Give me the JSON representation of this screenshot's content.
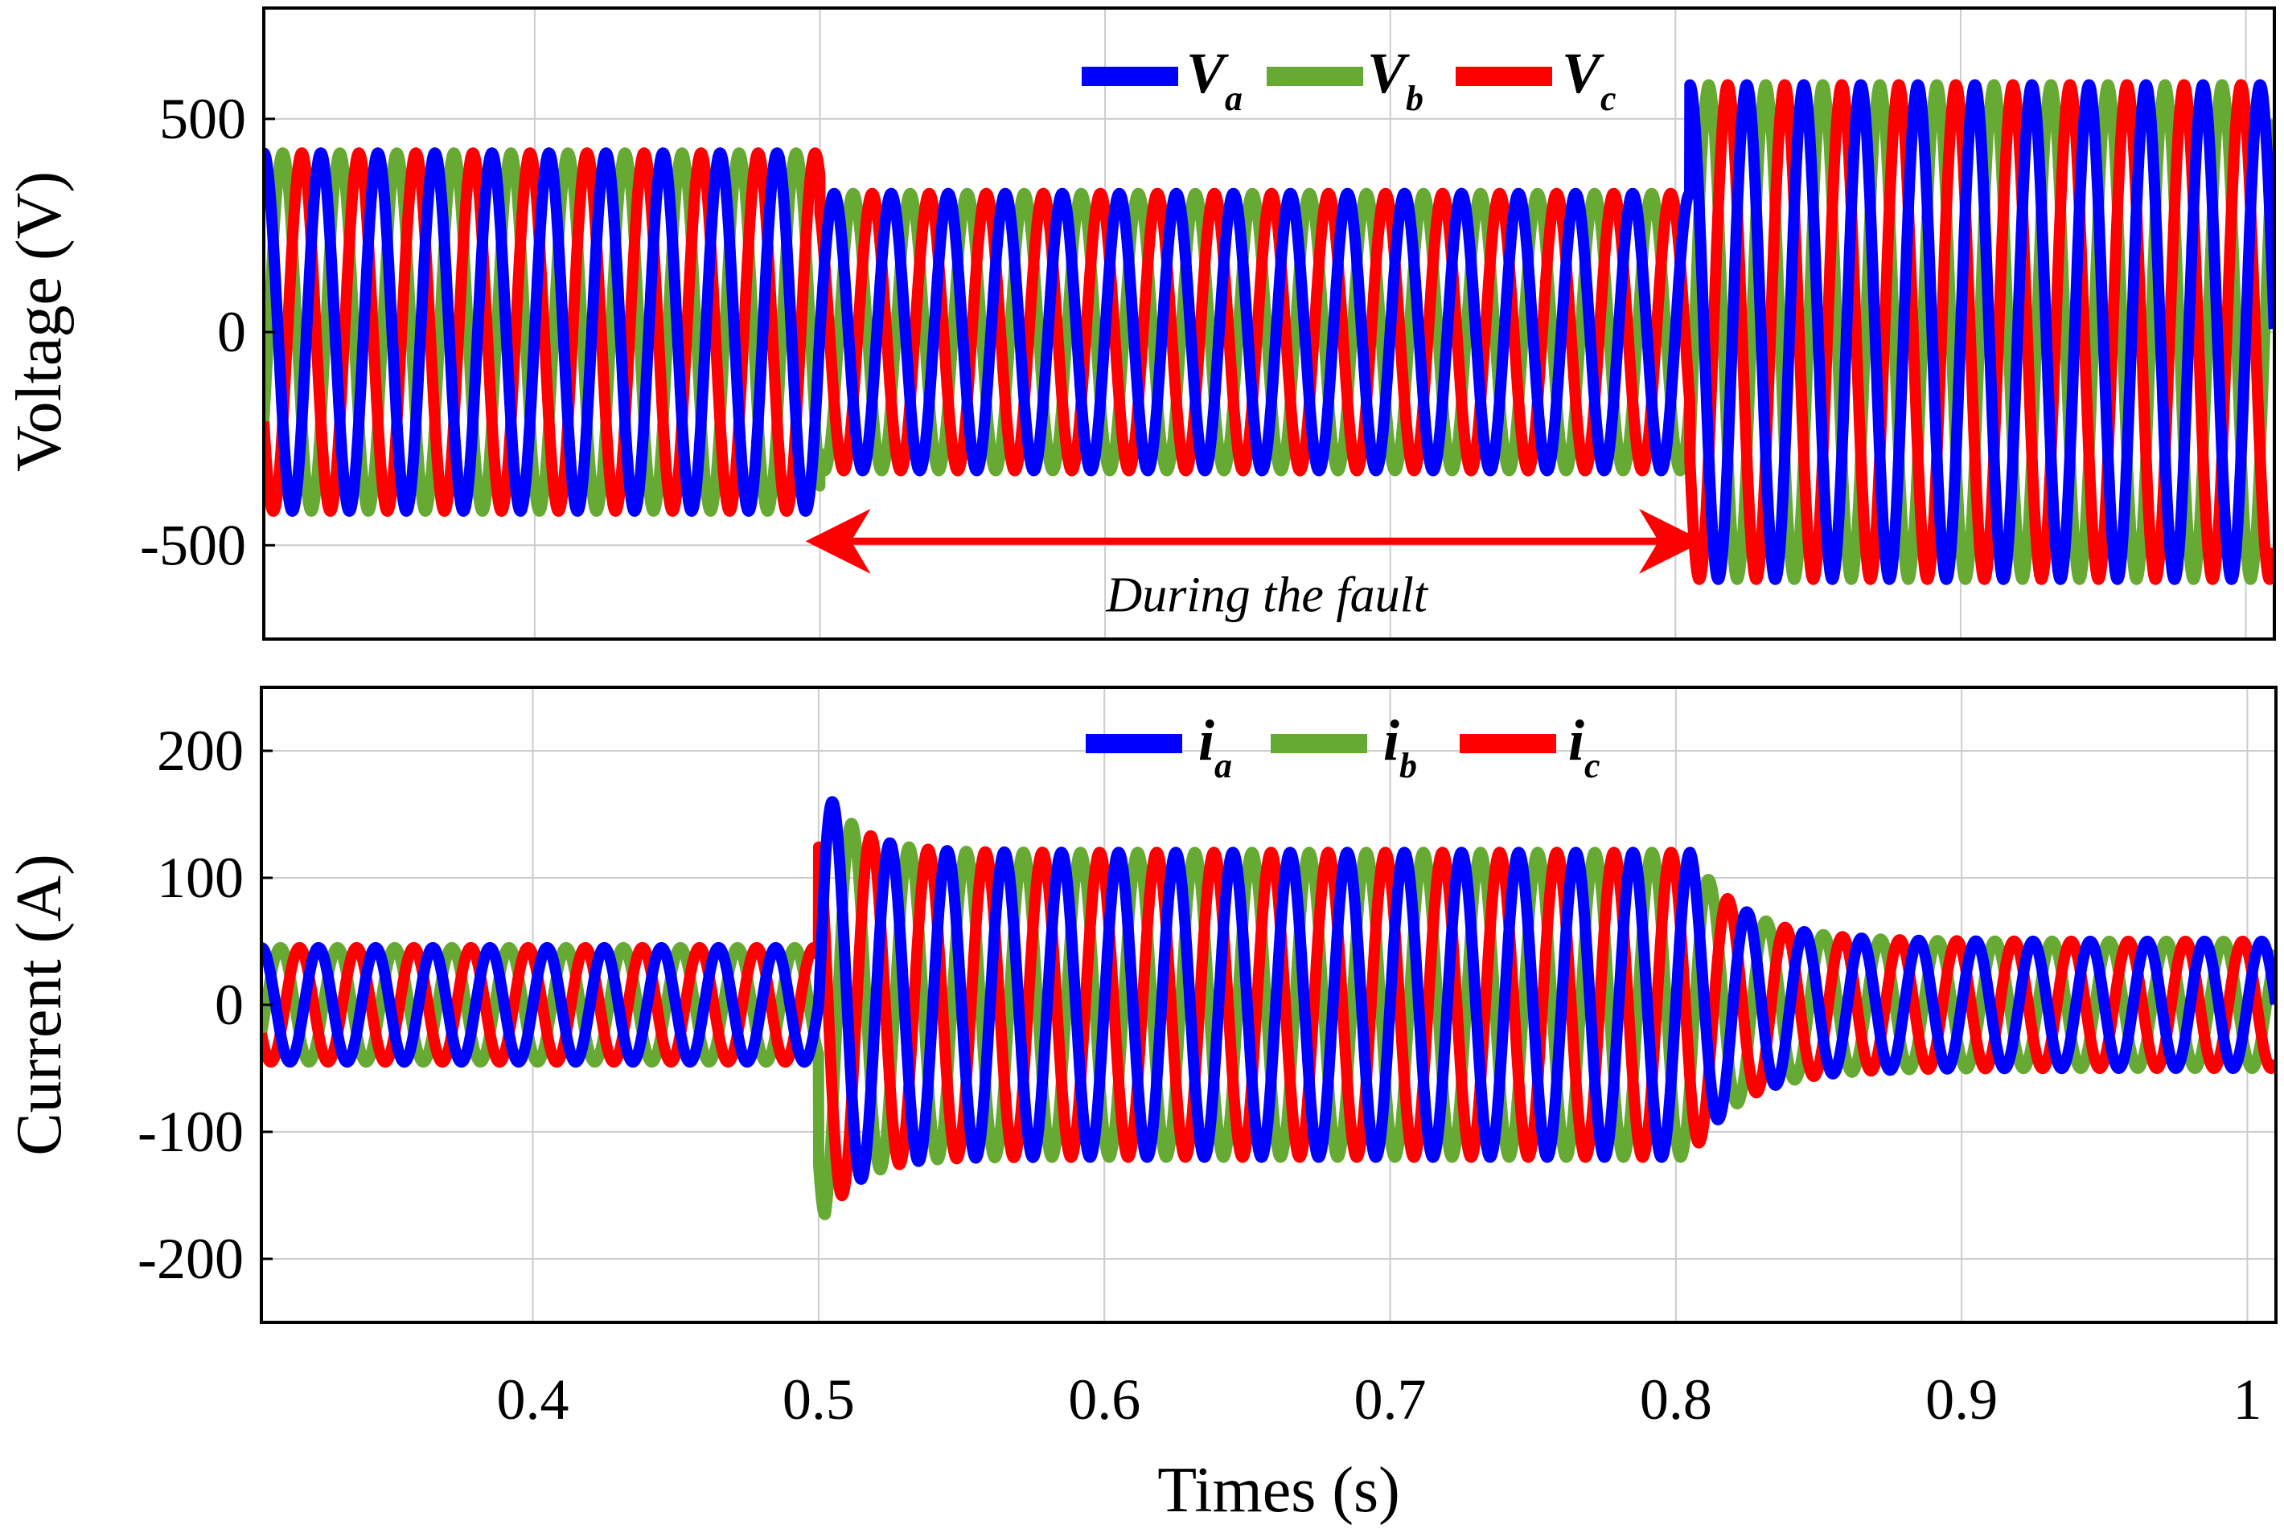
{
  "chart_data": [
    {
      "type": "line",
      "panel": "top",
      "ylabel": "Voltage (V)",
      "xlim": [
        0.305,
        1.01
      ],
      "ylim": [
        -720,
        760
      ],
      "yticks": [
        500,
        0,
        -500
      ],
      "ytick_labels": [
        "500",
        "0",
        "-500"
      ],
      "xticks": [
        0.4,
        0.5,
        0.6,
        0.7,
        0.8,
        0.9,
        1.0
      ],
      "grid": true,
      "frequency_hz": 50,
      "legend": [
        {
          "name": "V",
          "sub": "a",
          "color": "#0000ff"
        },
        {
          "name": "V",
          "sub": "b",
          "color": "#66aa33"
        },
        {
          "name": "V",
          "sub": "c",
          "color": "#ff0000"
        }
      ],
      "segments": [
        {
          "t_start": 0.305,
          "t_end": 0.5,
          "amplitude": 420
        },
        {
          "t_start": 0.5,
          "t_end": 0.805,
          "amplitude": 325
        },
        {
          "t_start": 0.805,
          "t_end": 1.01,
          "amplitude": 580
        }
      ],
      "annotation": {
        "text": "During the fault",
        "x_start": 0.495,
        "x_end": 0.81,
        "y": -500
      }
    },
    {
      "type": "line",
      "panel": "bottom",
      "ylabel": "Current (A)",
      "xlabel": "Times (s)",
      "xlim": [
        0.305,
        1.01
      ],
      "ylim": [
        -250,
        250
      ],
      "yticks": [
        200,
        100,
        0,
        -100,
        -200
      ],
      "ytick_labels": [
        "200",
        "100",
        "0",
        "-100",
        "-200"
      ],
      "xticks": [
        0.4,
        0.5,
        0.6,
        0.7,
        0.8,
        0.9,
        1.0
      ],
      "xtick_labels": [
        "0.4",
        "0.5",
        "0.6",
        "0.7",
        "0.8",
        "0.9",
        "1"
      ],
      "grid": true,
      "frequency_hz": 50,
      "legend": [
        {
          "name": "i",
          "sub": "a",
          "color": "#0000ff"
        },
        {
          "name": "i",
          "sub": "b",
          "color": "#66aa33"
        },
        {
          "name": "i",
          "sub": "c",
          "color": "#ff0000"
        }
      ],
      "segments": [
        {
          "t_start": 0.305,
          "t_end": 0.5,
          "amplitude": 45
        },
        {
          "t_start": 0.5,
          "t_end": 0.805,
          "amplitude": 120,
          "transient_peak": 180
        },
        {
          "t_start": 0.805,
          "t_end": 1.01,
          "amplitude": 50
        }
      ]
    }
  ]
}
